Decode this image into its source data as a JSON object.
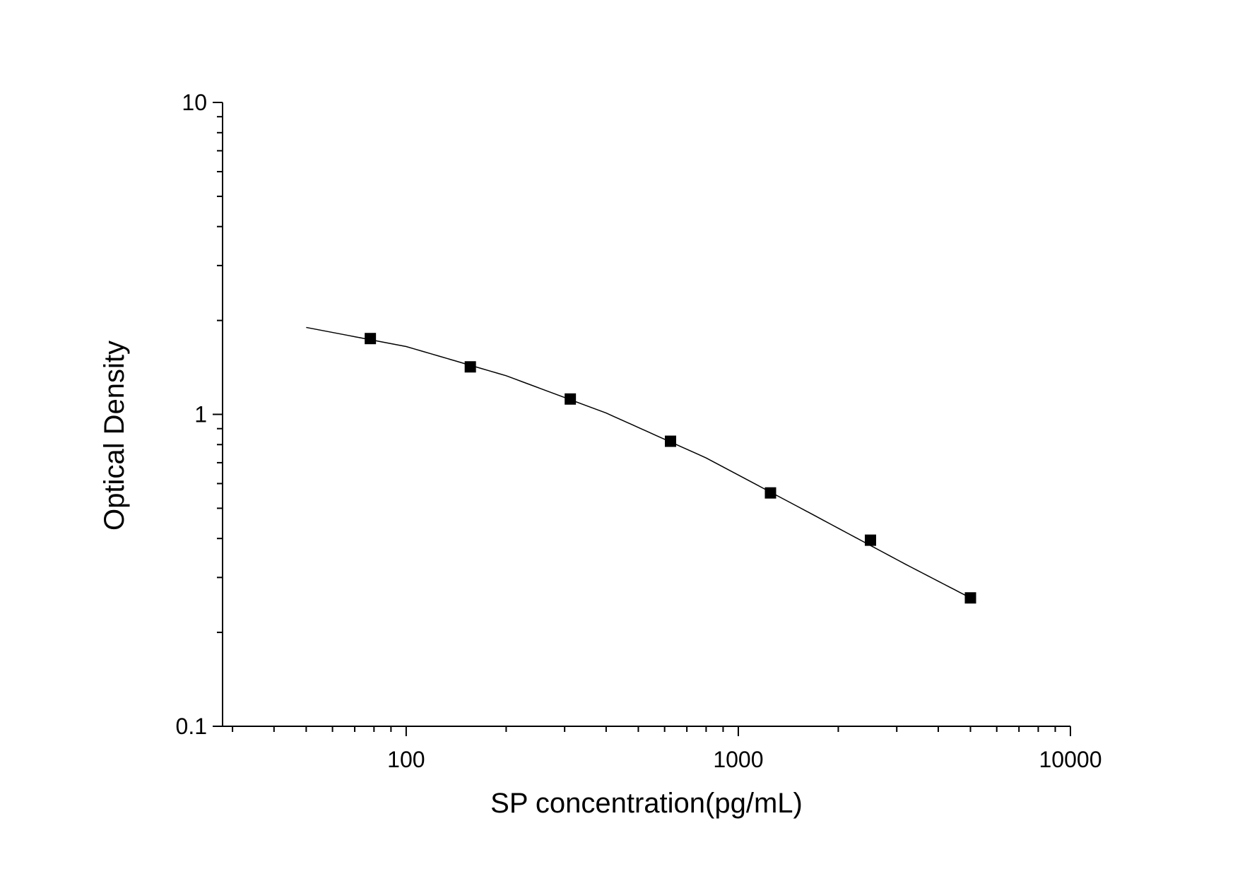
{
  "chart_data": {
    "type": "scatter",
    "xlabel": "SP concentration(pg/mL)",
    "ylabel": "Optical Density",
    "x_scale": "log",
    "y_scale": "log",
    "xlim": [
      28,
      10000
    ],
    "ylim": [
      0.1,
      10
    ],
    "x_ticks": [
      100,
      1000,
      10000
    ],
    "x_tick_labels": [
      "100",
      "1000",
      "10000"
    ],
    "y_ticks": [
      0.1,
      1,
      10
    ],
    "y_tick_labels": [
      "0.1",
      "1",
      "10"
    ],
    "grid": false,
    "points": {
      "x": [
        78,
        156,
        312,
        625,
        1250,
        2500,
        5000
      ],
      "y": [
        1.75,
        1.42,
        1.12,
        0.82,
        0.56,
        0.395,
        0.258
      ]
    },
    "fit_curve": {
      "x": [
        50,
        100,
        200,
        400,
        800,
        1600,
        3200,
        5000
      ],
      "y": [
        1.9,
        1.65,
        1.33,
        1.01,
        0.725,
        0.49,
        0.33,
        0.258
      ]
    },
    "colors": {
      "marker": "#000000",
      "line": "#000000",
      "axis": "#000000"
    }
  }
}
